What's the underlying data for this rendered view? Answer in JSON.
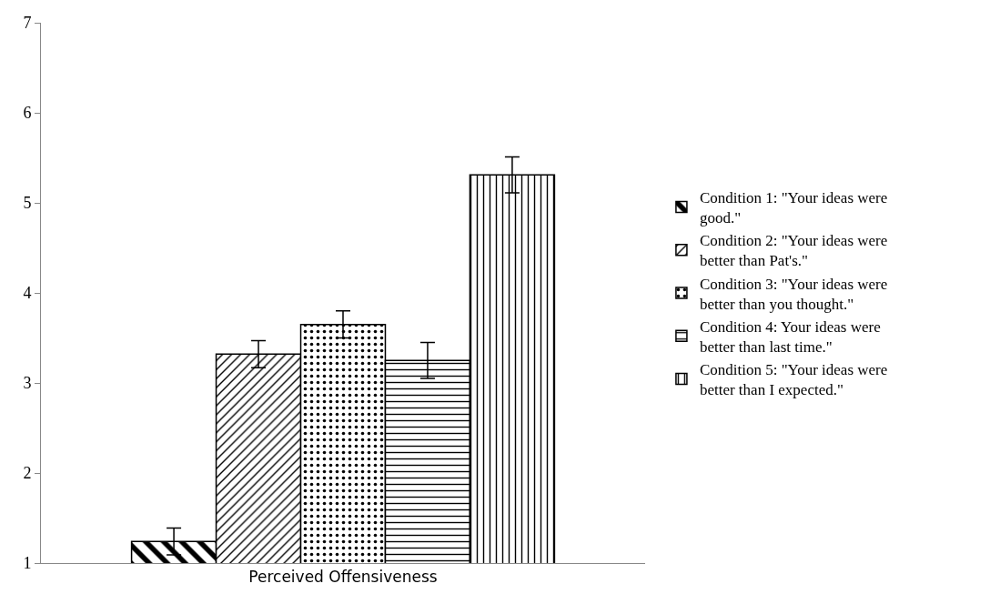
{
  "chart_data": {
    "type": "bar",
    "categories": [
      "Perceived Offensiveness"
    ],
    "series": [
      {
        "name": "Condition 1: \"Your ideas were good.\"",
        "color": "#000000",
        "values": [
          1.24
        ],
        "errors": [
          0.15
        ]
      },
      {
        "name": "Condition 2: \"Your ideas were better than Pat's.\"",
        "color": "#000000",
        "values": [
          3.32
        ],
        "errors": [
          0.15
        ]
      },
      {
        "name": "Condition 3: \"Your ideas were better than you thought.\"",
        "color": "#000000",
        "values": [
          3.65
        ],
        "errors": [
          0.15
        ]
      },
      {
        "name": "Condition 4: Your ideas were better than last time.\"",
        "color": "#000000",
        "values": [
          3.25
        ],
        "errors": [
          0.2
        ]
      },
      {
        "name": "Condition 5: \"Your ideas were better than I expected.\"",
        "color": "#000000",
        "values": [
          5.31
        ],
        "errors": [
          0.2
        ]
      }
    ],
    "ylim": [
      1,
      7
    ],
    "yticks": [
      1,
      2,
      3,
      4,
      5,
      6,
      7
    ],
    "grid": false,
    "legend": "right"
  }
}
